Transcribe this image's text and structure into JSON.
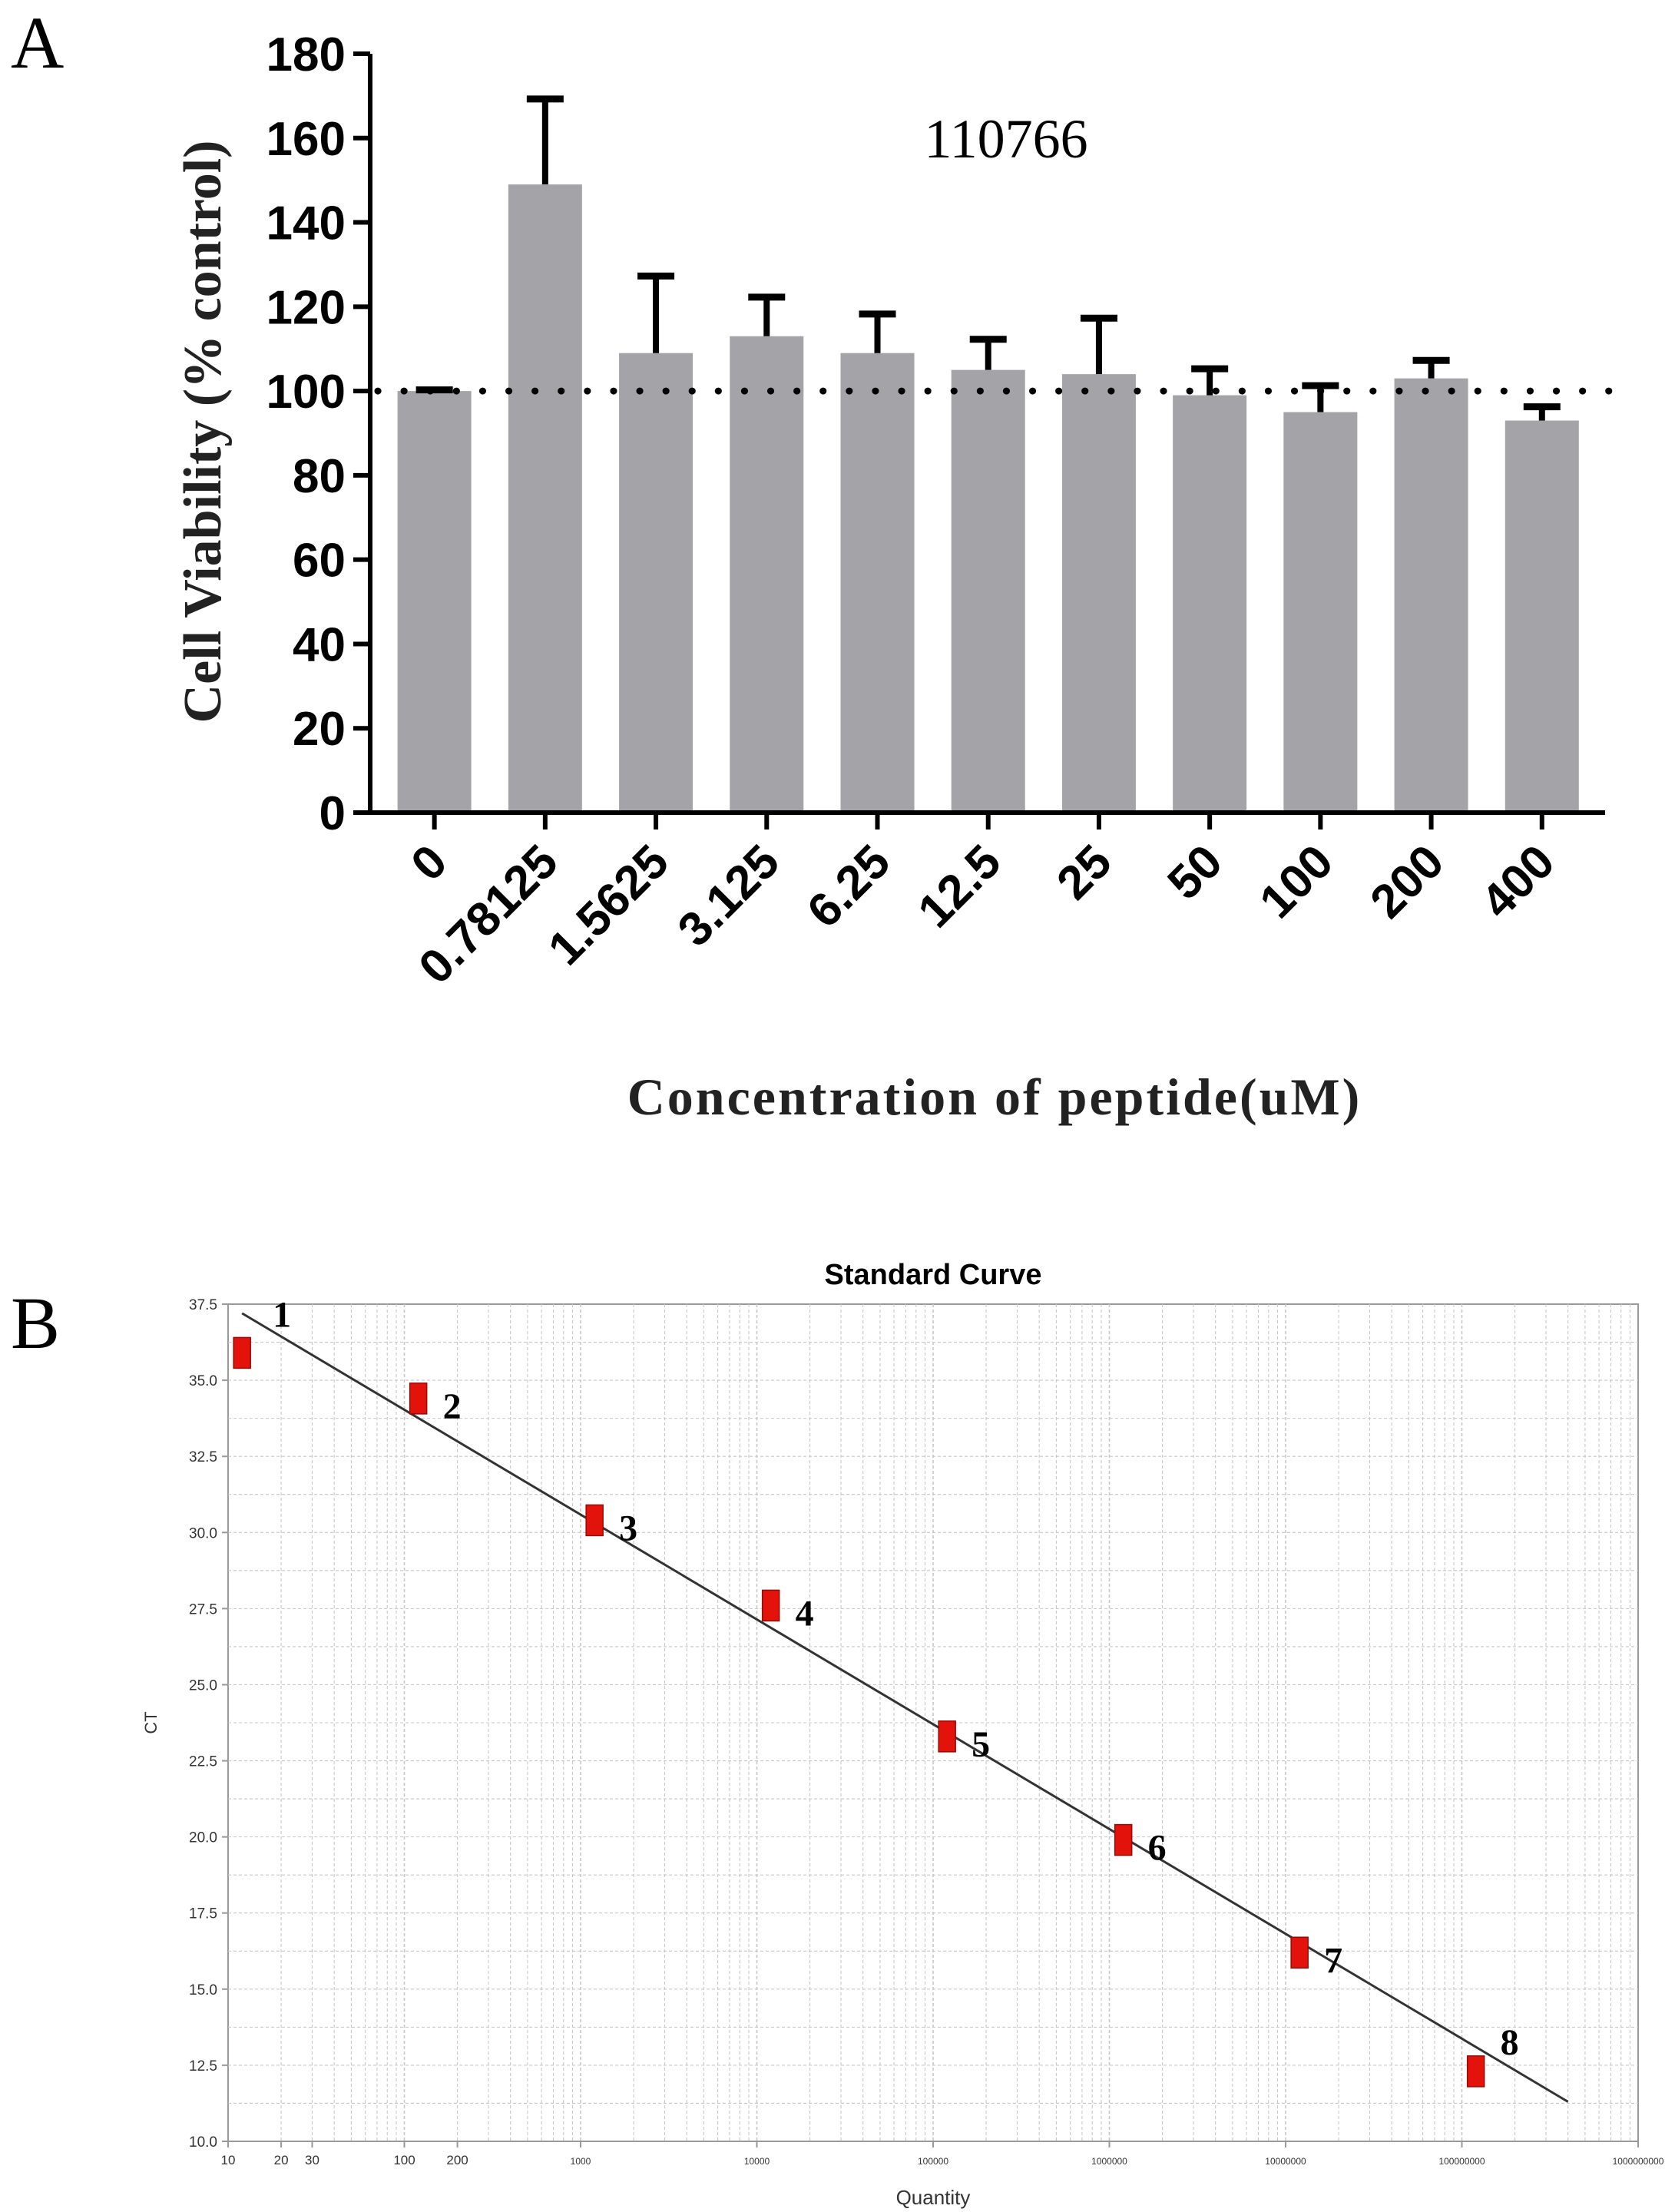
{
  "panel_labels": {
    "a": "A",
    "b": "B"
  },
  "colors": {
    "bar": "#a3a3a8",
    "ink": "#000000",
    "point": "#e3120b",
    "line": "#333333",
    "grid": "#c8c8c8",
    "frame": "#999999"
  },
  "chart_data": [
    {
      "type": "bar",
      "title": "110766",
      "xlabel": "Concentration of peptide(uM)",
      "ylabel": "Cell Viability (% control)",
      "categories": [
        "0",
        "0.78125",
        "1.5625",
        "3.125",
        "6.25",
        "12.5",
        "25",
        "50",
        "100",
        "200",
        "400"
      ],
      "values": [
        100,
        149,
        109,
        113,
        109,
        105,
        104,
        99,
        95,
        103,
        93
      ],
      "error_upper": [
        101,
        170,
        128,
        123,
        119,
        113,
        118,
        106,
        102,
        108,
        97
      ],
      "ylim": [
        0,
        180
      ],
      "yticks": [
        "0",
        "20",
        "40",
        "60",
        "80",
        "100",
        "120",
        "140",
        "160",
        "180"
      ],
      "reference_line": 100,
      "grid": false
    },
    {
      "type": "scatter",
      "title": "Standard Curve",
      "xlabel": "Quantity",
      "ylabel": "CT",
      "xscale": "log",
      "xlim": [
        10,
        1000000000
      ],
      "ylim": [
        10.0,
        37.5
      ],
      "xticks": [
        {
          "value": 10,
          "label": "10"
        },
        {
          "value": 20,
          "label": "20"
        },
        {
          "value": 30,
          "label": "30"
        },
        {
          "value": 100,
          "label": "100"
        },
        {
          "value": 200,
          "label": "200"
        },
        {
          "value": 1000,
          "label": "1000"
        },
        {
          "value": 10000,
          "label": "10000"
        },
        {
          "value": 100000,
          "label": "100000"
        },
        {
          "value": 1000000,
          "label": "1000000"
        },
        {
          "value": 10000000,
          "label": "10000000"
        },
        {
          "value": 100000000,
          "label": "100000000"
        },
        {
          "value": 1000000000,
          "label": "1000000000"
        }
      ],
      "yticks": [
        "10.0",
        "12.5",
        "15.0",
        "17.5",
        "20.0",
        "22.5",
        "25.0",
        "27.5",
        "30.0",
        "32.5",
        "35.0",
        "37.5"
      ],
      "points": [
        {
          "label": "1",
          "x": 12,
          "y": 35.9
        },
        {
          "label": "2",
          "x": 120,
          "y": 34.4
        },
        {
          "label": "3",
          "x": 1200,
          "y": 30.4
        },
        {
          "label": "4",
          "x": 12000,
          "y": 27.6
        },
        {
          "label": "5",
          "x": 120000,
          "y": 23.3
        },
        {
          "label": "6",
          "x": 1200000,
          "y": 19.9
        },
        {
          "label": "7",
          "x": 12000000,
          "y": 16.2
        },
        {
          "label": "8",
          "x": 120000000,
          "y": 12.3
        }
      ],
      "fit_line": {
        "x": [
          12,
          400000000
        ],
        "y": [
          37.2,
          11.3
        ]
      },
      "grid": true
    }
  ]
}
